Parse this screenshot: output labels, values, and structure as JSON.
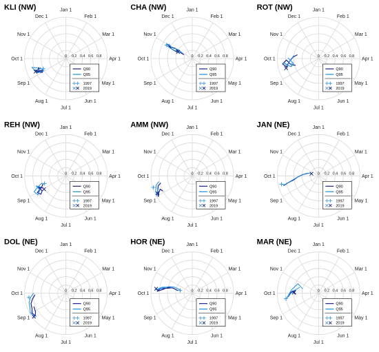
{
  "colors": {
    "q90": "#1b1f8a",
    "q95": "#1e8fe0",
    "y1997": "#3a9ad9",
    "y2019": "#1b2a7a",
    "grid": "#d8d8d8"
  },
  "legend": {
    "q90": "Q90",
    "q95": "Q95",
    "y1997": "1997",
    "y2019": "2019"
  },
  "months": [
    "Jan 1",
    "Feb 1",
    "Mar 1",
    "Apr 1",
    "May 1",
    "Jun 1",
    "Jul 1",
    "Aug 1",
    "Sep 1",
    "Oct 1",
    "Nov 1",
    "Dec 1"
  ],
  "radial_ticks": [
    "0",
    "0.2",
    "0.4",
    "0.6",
    "0.8"
  ],
  "chart_data": [
    {
      "type": "line",
      "title": "KLI (NW)",
      "series": [
        {
          "name": "Q90",
          "points": [
            [
              252,
              0.67
            ],
            [
              256,
              0.7
            ],
            [
              250,
              0.75
            ],
            [
              246,
              0.62
            ],
            [
              254,
              0.8
            ],
            [
              249,
              0.76
            ],
            [
              244,
              0.66
            ],
            [
              251,
              0.62
            ]
          ]
        },
        {
          "name": "Q95",
          "points": [
            [
              256,
              0.72
            ],
            [
              260,
              0.85
            ],
            [
              253,
              0.8
            ],
            [
              248,
              0.78
            ],
            [
              245,
              0.62
            ],
            [
              255,
              0.66
            ],
            [
              250,
              0.74
            ]
          ]
        }
      ],
      "start_1997": [
        250,
        0.6
      ],
      "end_2019": [
        251,
        0.8
      ]
    },
    {
      "type": "line",
      "title": "CHA (NW)",
      "series": [
        {
          "name": "Q90",
          "points": [
            [
              300,
              0.22
            ],
            [
              302,
              0.35
            ],
            [
              306,
              0.48
            ],
            [
              303,
              0.6
            ],
            [
              305,
              0.7
            ],
            [
              300,
              0.55
            ],
            [
              298,
              0.4
            ]
          ]
        },
        {
          "name": "Q95",
          "points": [
            [
              303,
              0.25
            ],
            [
              308,
              0.4
            ],
            [
              303,
              0.56
            ],
            [
              307,
              0.66
            ],
            [
              302,
              0.72
            ],
            [
              299,
              0.5
            ],
            [
              304,
              0.3
            ]
          ]
        }
      ],
      "start_1997": [
        303,
        0.7
      ],
      "end_2019": [
        300,
        0.38
      ]
    },
    {
      "type": "line",
      "title": "ROT (NW)",
      "series": [
        {
          "name": "Q90",
          "points": [
            [
              285,
              0.52
            ],
            [
              278,
              0.62
            ],
            [
              268,
              0.72
            ],
            [
              260,
              0.8
            ],
            [
              266,
              0.88
            ],
            [
              272,
              0.78
            ],
            [
              262,
              0.68
            ],
            [
              258,
              0.58
            ]
          ]
        },
        {
          "name": "Q95",
          "points": [
            [
              282,
              0.6
            ],
            [
              272,
              0.68
            ],
            [
              263,
              0.78
            ],
            [
              268,
              0.86
            ],
            [
              258,
              0.7
            ],
            [
              264,
              0.62
            ],
            [
              276,
              0.74
            ]
          ]
        }
      ],
      "start_1997": [
        262,
        0.66
      ],
      "end_2019": [
        258,
        0.82
      ]
    },
    {
      "type": "line",
      "title": "REH (NW)",
      "series": [
        {
          "name": "Q90",
          "points": [
            [
              246,
              0.62
            ],
            [
              252,
              0.72
            ],
            [
              242,
              0.68
            ],
            [
              238,
              0.75
            ],
            [
              244,
              0.8
            ],
            [
              250,
              0.64
            ],
            [
              256,
              0.58
            ]
          ]
        },
        {
          "name": "Q95",
          "points": [
            [
              250,
              0.66
            ],
            [
              256,
              0.76
            ],
            [
              246,
              0.72
            ],
            [
              240,
              0.82
            ],
            [
              248,
              0.86
            ],
            [
              254,
              0.7
            ],
            [
              258,
              0.6
            ]
          ]
        }
      ],
      "start_1997": [
        255,
        0.55
      ],
      "end_2019": [
        243,
        0.62
      ]
    },
    {
      "type": "line",
      "title": "AMM (NW)",
      "series": [
        {
          "name": "Q90",
          "points": [
            [
              262,
              0.78
            ],
            [
              258,
              0.86
            ],
            [
              250,
              0.92
            ],
            [
              243,
              0.96
            ],
            [
              248,
              0.9
            ],
            [
              252,
              0.84
            ],
            [
              247,
              0.8
            ]
          ]
        },
        {
          "name": "Q95",
          "points": [
            [
              265,
              0.82
            ],
            [
              260,
              0.9
            ],
            [
              252,
              0.96
            ],
            [
              245,
              0.98
            ],
            [
              250,
              0.92
            ],
            [
              256,
              0.86
            ]
          ]
        }
      ],
      "start_1997": [
        258,
        0.98
      ],
      "end_2019": [
        248,
        0.94
      ]
    },
    {
      "type": "line",
      "title": "JAN (NE)",
      "series": [
        {
          "name": "Q90",
          "points": [
            [
              290,
              0.25
            ],
            [
              280,
              0.38
            ],
            [
              272,
              0.5
            ],
            [
              265,
              0.62
            ],
            [
              262,
              0.75
            ],
            [
              259,
              0.88
            ]
          ]
        },
        {
          "name": "Q95",
          "points": [
            [
              295,
              0.2
            ],
            [
              285,
              0.32
            ],
            [
              275,
              0.45
            ],
            [
              268,
              0.58
            ],
            [
              263,
              0.72
            ],
            [
              260,
              0.86
            ],
            [
              262,
              0.92
            ]
          ]
        }
      ],
      "start_1997": [
        262,
        0.92
      ],
      "end_2019": [
        292,
        0.18
      ]
    },
    {
      "type": "line",
      "title": "DOL (NE)",
      "series": [
        {
          "name": "Q90",
          "points": [
            [
              272,
              0.75
            ],
            [
              265,
              0.82
            ],
            [
              258,
              0.88
            ],
            [
              250,
              0.9
            ],
            [
              244,
              0.95
            ],
            [
              238,
              0.92
            ],
            [
              243,
              0.86
            ],
            [
              252,
              0.84
            ]
          ]
        },
        {
          "name": "Q95",
          "points": [
            [
              275,
              0.78
            ],
            [
              268,
              0.86
            ],
            [
              260,
              0.92
            ],
            [
              252,
              0.94
            ],
            [
              246,
              0.98
            ],
            [
              240,
              0.96
            ],
            [
              236,
              0.9
            ]
          ]
        }
      ],
      "start_1997": [
        268,
        0.9
      ],
      "end_2019": [
        238,
        0.96
      ]
    },
    {
      "type": "line",
      "title": "HOR (NE)",
      "series": [
        {
          "name": "Q90",
          "points": [
            [
              285,
              0.35
            ],
            [
              290,
              0.48
            ],
            [
              288,
              0.6
            ],
            [
              282,
              0.72
            ],
            [
              278,
              0.85
            ],
            [
              283,
              0.78
            ],
            [
              288,
              0.55
            ]
          ]
        },
        {
          "name": "Q95",
          "points": [
            [
              290,
              0.3
            ],
            [
              294,
              0.45
            ],
            [
              291,
              0.58
            ],
            [
              286,
              0.7
            ],
            [
              280,
              0.88
            ],
            [
              286,
              0.75
            ],
            [
              292,
              0.52
            ]
          ]
        }
      ],
      "start_1997": [
        288,
        0.3
      ],
      "end_2019": [
        282,
        0.88
      ]
    },
    {
      "type": "line",
      "title": "MAR (NE)",
      "series": [
        {
          "name": "Q90",
          "points": [
            [
              272,
              0.55
            ],
            [
              280,
              0.62
            ],
            [
              275,
              0.7
            ],
            [
              268,
              0.74
            ],
            [
              276,
              0.66
            ],
            [
              282,
              0.55
            ]
          ]
        },
        {
          "name": "Q95",
          "points": [
            [
              290,
              0.4
            ],
            [
              300,
              0.55
            ],
            [
              282,
              0.66
            ],
            [
              272,
              0.72
            ],
            [
              266,
              0.78
            ],
            [
              278,
              0.64
            ],
            [
              292,
              0.48
            ]
          ]
        }
      ],
      "start_1997": [
        265,
        0.8
      ],
      "end_2019": [
        276,
        0.6
      ]
    }
  ]
}
